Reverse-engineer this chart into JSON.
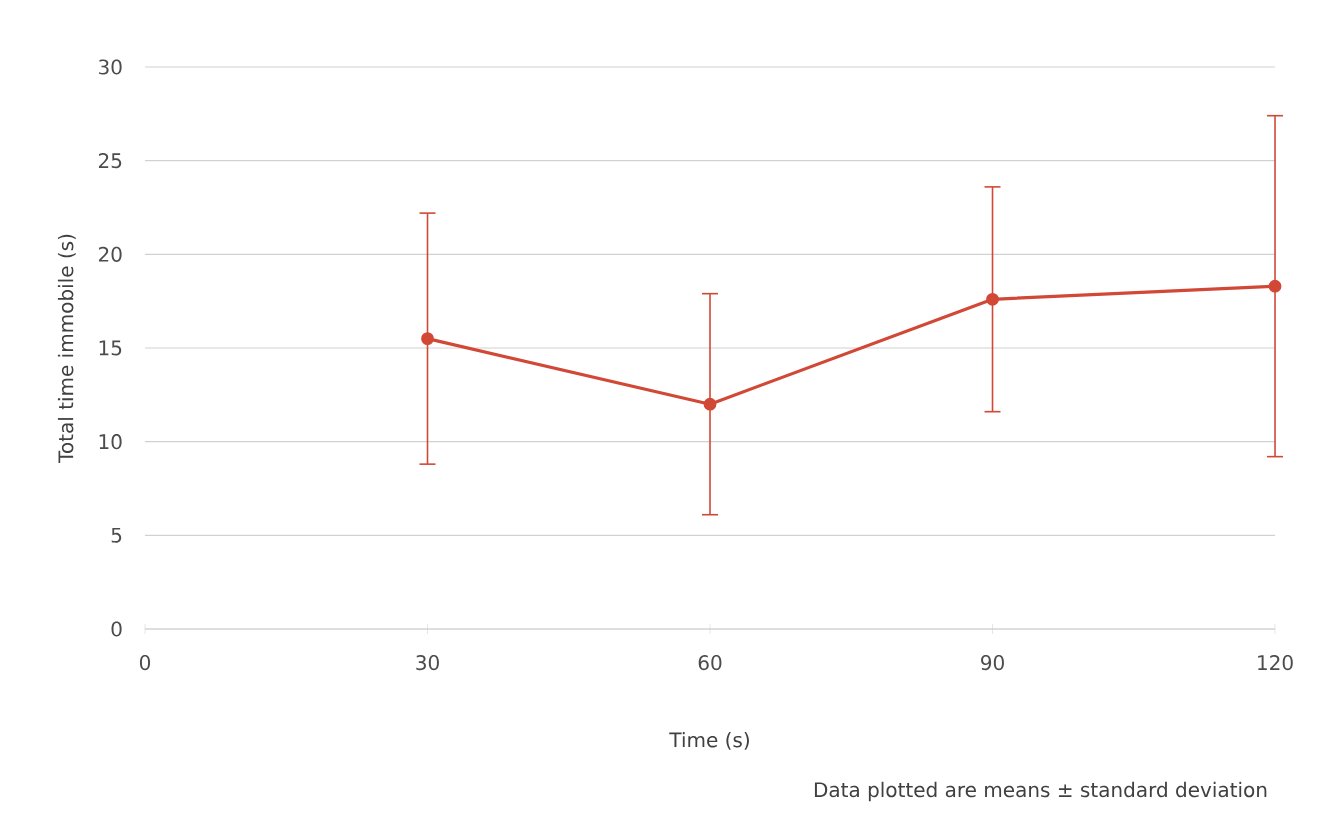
{
  "chart_data": {
    "type": "line",
    "xlabel": "Time (s)",
    "ylabel": "Total time immobile (s)",
    "annotations": [
      "Data plotted are means ± standard deviation"
    ],
    "x": [
      30,
      60,
      90,
      120
    ],
    "series": [
      {
        "color": "#d14836",
        "values": [
          15.5,
          12.0,
          17.6,
          18.3
        ],
        "errors": [
          6.7,
          5.9,
          6.0,
          9.1
        ]
      }
    ],
    "xlim": [
      0,
      120
    ],
    "xticks": [
      0,
      30,
      60,
      90,
      120
    ],
    "ylim": [
      0,
      30
    ],
    "yticks": [
      0,
      5,
      10,
      15,
      20,
      25,
      30
    ],
    "grid": "y",
    "marker": "circle",
    "line_style": "solid"
  }
}
